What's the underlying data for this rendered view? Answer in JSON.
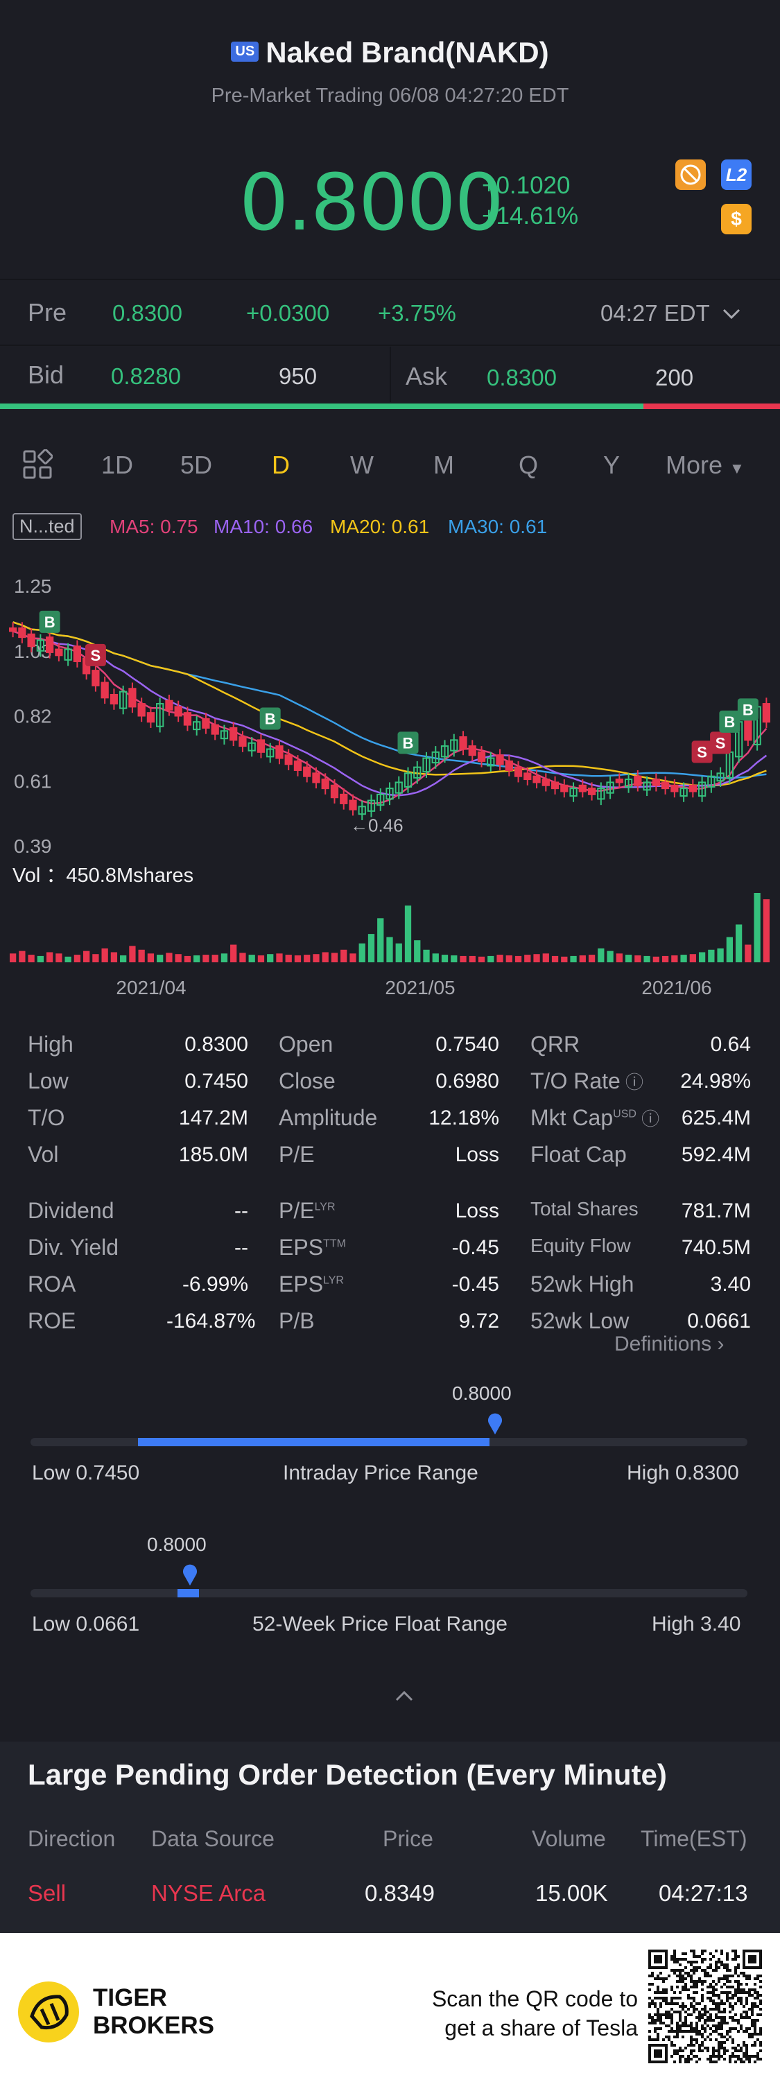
{
  "header": {
    "market_badge": "US",
    "title": "Naked Brand(NAKD)",
    "subtitle": "Pre-Market Trading 06/08 04:27:20 EDT"
  },
  "quote": {
    "price": "0.8000",
    "change": "+0.1020",
    "change_pct": "+14.61%",
    "icons": [
      "no-trade-icon",
      "level2-icon",
      "dollar-icon"
    ],
    "level2_label": "L2",
    "dollar_label": "$"
  },
  "pre_row": {
    "label": "Pre",
    "price": "0.8300",
    "change": "+0.0300",
    "change_pct": "+3.75%",
    "time": "04:27 EDT"
  },
  "bidask": {
    "bid_label": "Bid",
    "bid_price": "0.8280",
    "bid_size": "950",
    "ask_label": "Ask",
    "ask_price": "0.8300",
    "ask_size": "200"
  },
  "tabs": [
    "1D",
    "5D",
    "D",
    "W",
    "M",
    "Q",
    "Y",
    "More"
  ],
  "active_tab": "D",
  "chart_legend": {
    "series_badge": "N...ted",
    "ma5": "MA5: 0.75",
    "ma10": "MA10: 0.66",
    "ma20": "MA20: 0.61",
    "ma30": "MA30: 0.61",
    "colors": {
      "ma5": "#e2427a",
      "ma10": "#9b64f2",
      "ma20": "#f2c418",
      "ma30": "#3aa0e8",
      "up": "#35c17d",
      "down": "#e8364f"
    }
  },
  "chart_data": {
    "type": "candlestick",
    "ytick_labels": [
      "1.25",
      "1.03",
      "0.82",
      "0.61",
      "0.39"
    ],
    "ylim": [
      0.39,
      1.25
    ],
    "xtick_labels": [
      "2021/04",
      "2021/05",
      "2021/06"
    ],
    "annotation": "←0.46",
    "low_marker": 0.46,
    "volume_label": "Vol ：450.8Mshares",
    "close": [
      1.1,
      1.08,
      1.05,
      1.07,
      1.03,
      1.02,
      1.04,
      1.0,
      0.96,
      0.92,
      0.88,
      0.86,
      0.9,
      0.85,
      0.82,
      0.8,
      0.86,
      0.84,
      0.82,
      0.79,
      0.8,
      0.78,
      0.76,
      0.77,
      0.74,
      0.72,
      0.73,
      0.7,
      0.71,
      0.68,
      0.66,
      0.64,
      0.62,
      0.6,
      0.58,
      0.55,
      0.53,
      0.51,
      0.52,
      0.54,
      0.56,
      0.58,
      0.6,
      0.63,
      0.65,
      0.68,
      0.7,
      0.72,
      0.74,
      0.71,
      0.69,
      0.67,
      0.68,
      0.66,
      0.64,
      0.62,
      0.61,
      0.6,
      0.59,
      0.58,
      0.57,
      0.58,
      0.57,
      0.56,
      0.58,
      0.6,
      0.6,
      0.61,
      0.59,
      0.6,
      0.59,
      0.58,
      0.57,
      0.58,
      0.57,
      0.6,
      0.62,
      0.63,
      0.7,
      0.8,
      0.74,
      0.85,
      0.8
    ],
    "up": [
      0,
      0,
      0,
      1,
      0,
      0,
      1,
      0,
      0,
      0,
      0,
      0,
      1,
      0,
      0,
      0,
      1,
      0,
      0,
      0,
      1,
      0,
      0,
      1,
      0,
      0,
      1,
      0,
      1,
      0,
      0,
      0,
      0,
      0,
      0,
      0,
      0,
      0,
      1,
      1,
      1,
      1,
      1,
      1,
      1,
      1,
      1,
      1,
      1,
      0,
      0,
      0,
      1,
      0,
      0,
      0,
      0,
      0,
      0,
      0,
      0,
      1,
      0,
      0,
      1,
      1,
      0,
      1,
      0,
      1,
      0,
      0,
      0,
      1,
      0,
      1,
      1,
      1,
      1,
      1,
      0,
      1,
      0
    ],
    "volume": [
      14,
      18,
      12,
      10,
      16,
      14,
      9,
      12,
      18,
      13,
      22,
      16,
      11,
      26,
      20,
      14,
      12,
      15,
      13,
      10,
      11,
      12,
      12,
      14,
      28,
      15,
      12,
      11,
      13,
      14,
      12,
      11,
      12,
      13,
      16,
      15,
      20,
      14,
      30,
      45,
      70,
      40,
      30,
      90,
      35,
      20,
      14,
      12,
      11,
      10,
      10,
      9,
      10,
      12,
      11,
      10,
      12,
      13,
      14,
      10,
      9,
      10,
      11,
      12,
      22,
      18,
      14,
      12,
      11,
      10,
      9,
      10,
      11,
      12,
      13,
      16,
      20,
      22,
      40,
      60,
      28,
      110,
      100
    ],
    "buy_sell_markers": [
      "B",
      "S",
      "B",
      "B",
      "S",
      "S",
      "B",
      "B"
    ]
  },
  "stats": {
    "col1": [
      {
        "label": "High",
        "value": "0.8300"
      },
      {
        "label": "Low",
        "value": "0.7450"
      },
      {
        "label": "T/O",
        "value": "147.2M"
      },
      {
        "label": "Vol",
        "value": "185.0M"
      },
      {
        "label": "Dividend",
        "value": "--"
      },
      {
        "label": "Div. Yield",
        "value": "--"
      },
      {
        "label": "ROA",
        "value": "-6.99%"
      },
      {
        "label": "ROE",
        "value": "-164.87%"
      }
    ],
    "col2": [
      {
        "label": "Open",
        "value": "0.7540"
      },
      {
        "label": "Close",
        "value": "0.6980"
      },
      {
        "label": "Amplitude",
        "value": "12.18%"
      },
      {
        "label": "P/E",
        "value": "Loss"
      },
      {
        "label": "P/E",
        "sup": "LYR",
        "value": "Loss"
      },
      {
        "label": "EPS",
        "sup": "TTM",
        "value": "-0.45"
      },
      {
        "label": "EPS",
        "sup": "LYR",
        "value": "-0.45"
      },
      {
        "label": "P/B",
        "value": "9.72"
      }
    ],
    "col3": [
      {
        "label": "QRR",
        "value": "0.64"
      },
      {
        "label": "T/O Rate",
        "value": "24.98%"
      },
      {
        "label": "Mkt Cap",
        "sup": "USD",
        "value": "625.4M"
      },
      {
        "label": "Float Cap",
        "value": "592.4M"
      },
      {
        "label": "Total Shares",
        "value": "781.7M"
      },
      {
        "label": "Equity Flow",
        "value": "740.5M"
      },
      {
        "label": "52wk High",
        "value": "3.40"
      },
      {
        "label": "52wk Low",
        "value": "0.0661"
      }
    ],
    "definitions_link": "Definitions"
  },
  "intraday_range": {
    "marker_value": "0.8000",
    "low": "Low 0.7450",
    "title": "Intraday Price Range",
    "high": "High 0.8300",
    "fill_start": 0.15,
    "fill_end": 0.64
  },
  "week52_range": {
    "marker_value": "0.8000",
    "low": "Low 0.0661",
    "title": "52-Week Price Float Range",
    "high": "High 3.40",
    "fill_start": 0.205,
    "fill_end": 0.235
  },
  "pending_orders": {
    "title": "Large Pending Order Detection (Every Minute)",
    "headers": [
      "Direction",
      "Data Source",
      "Price",
      "Volume",
      "Time(EST)"
    ],
    "rows": [
      {
        "direction": "Sell",
        "source": "NYSE Arca",
        "price": "0.8349",
        "volume": "15.00K",
        "time": "04:27:13"
      }
    ]
  },
  "footer": {
    "brand_line1": "TIGER",
    "brand_line2": "BROKERS",
    "scan_line1": "Scan the QR code to",
    "scan_line2": "get a share of Tesla"
  }
}
